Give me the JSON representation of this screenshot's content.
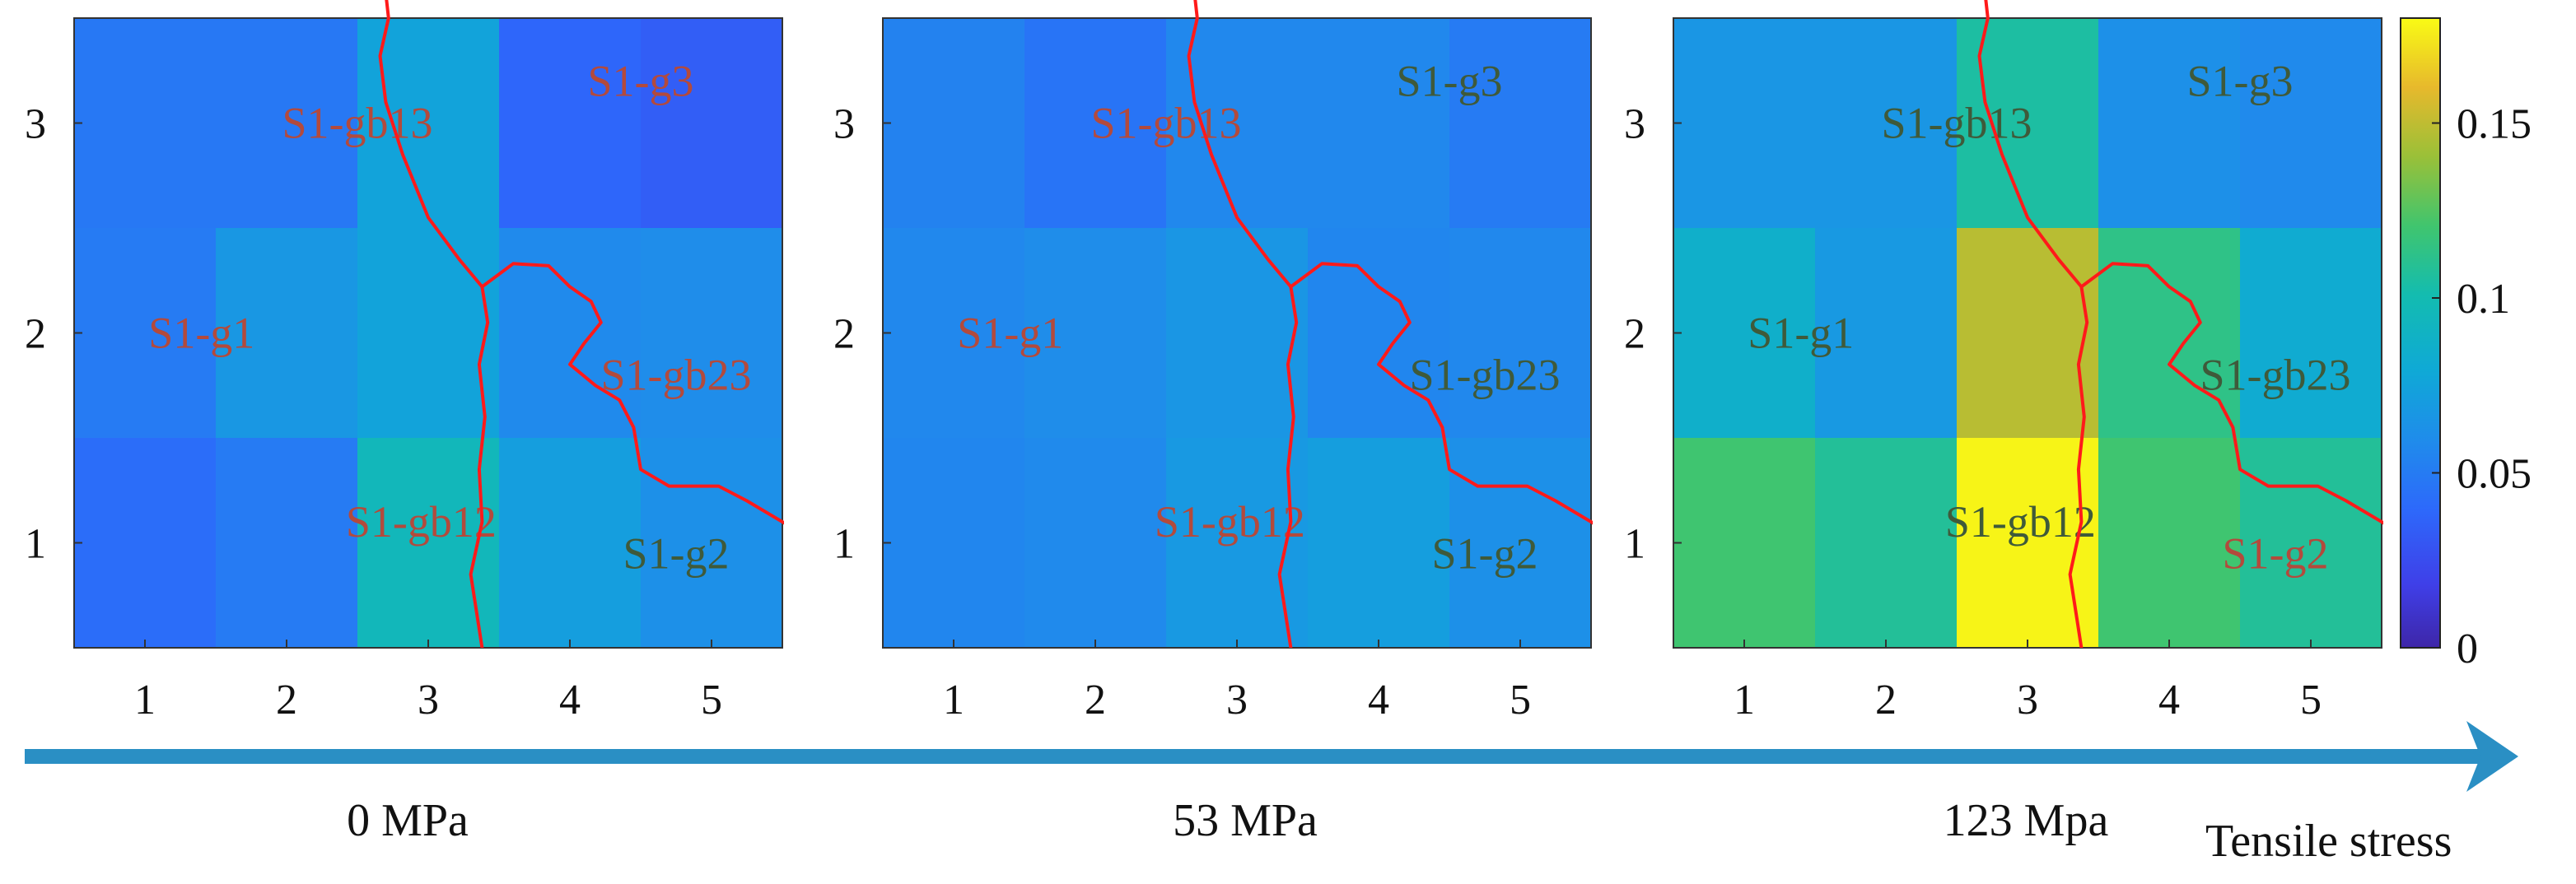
{
  "figure": {
    "stage_labels": [
      "0 MPa",
      "53 MPa",
      "123 Mpa"
    ],
    "arrow_label": "Tensile stress"
  },
  "colorbar": {
    "ticks": [
      0,
      0.05,
      0.1,
      0.15
    ],
    "tick_labels": [
      "0",
      "0.05",
      "0.1",
      "0.15"
    ],
    "range": [
      0,
      0.18
    ],
    "colormap": "parula"
  },
  "colors": {
    "region_label": "#b34a3c",
    "region_label_alt": "#3f5a3a",
    "boundary": "#ff1a1a",
    "arrow": "#2a8fc4"
  },
  "chart_data": [
    {
      "type": "heatmap",
      "title": "0 MPa",
      "x_ticks": [
        1,
        2,
        3,
        4,
        5
      ],
      "y_ticks": [
        1,
        2,
        3
      ],
      "xlim": [
        0.5,
        5.5
      ],
      "ylim": [
        0.5,
        3.5
      ],
      "grid": false,
      "rows": [
        {
          "y": 3,
          "values": [
            0.048,
            0.048,
            0.075,
            0.038,
            0.034
          ]
        },
        {
          "y": 2,
          "values": [
            0.05,
            0.067,
            0.075,
            0.058,
            0.06
          ]
        },
        {
          "y": 1,
          "values": [
            0.042,
            0.05,
            0.095,
            0.072,
            0.062
          ]
        }
      ],
      "labels": [
        {
          "text": "S1-gb13",
          "x": 2.5,
          "y": 3,
          "color": "region_label"
        },
        {
          "text": "S1-g3",
          "x": 4.5,
          "y": 3.2,
          "color": "region_label"
        },
        {
          "text": "S1-g1",
          "x": 1.4,
          "y": 2,
          "color": "region_label"
        },
        {
          "text": "S1-gb23",
          "x": 4.75,
          "y": 1.8,
          "color": "region_label"
        },
        {
          "text": "S1-gb12",
          "x": 2.95,
          "y": 1.1,
          "color": "region_label"
        },
        {
          "text": "S1-g2",
          "x": 4.75,
          "y": 0.95,
          "color": "region_label_alt"
        }
      ]
    },
    {
      "type": "heatmap",
      "title": "53 MPa",
      "x_ticks": [
        1,
        2,
        3,
        4,
        5
      ],
      "y_ticks": [
        1,
        2,
        3
      ],
      "xlim": [
        0.5,
        5.5
      ],
      "ylim": [
        0.5,
        3.5
      ],
      "grid": false,
      "rows": [
        {
          "y": 3,
          "values": [
            0.054,
            0.046,
            0.057,
            0.057,
            0.05
          ]
        },
        {
          "y": 2,
          "values": [
            0.057,
            0.06,
            0.066,
            0.056,
            0.057
          ]
        },
        {
          "y": 1,
          "values": [
            0.056,
            0.058,
            0.068,
            0.072,
            0.062
          ]
        }
      ],
      "labels": [
        {
          "text": "S1-gb13",
          "x": 2.5,
          "y": 3,
          "color": "region_label"
        },
        {
          "text": "S1-g3",
          "x": 4.5,
          "y": 3.2,
          "color": "region_label_alt"
        },
        {
          "text": "S1-g1",
          "x": 1.4,
          "y": 2,
          "color": "region_label"
        },
        {
          "text": "S1-gb23",
          "x": 4.75,
          "y": 1.8,
          "color": "region_label_alt"
        },
        {
          "text": "S1-gb12",
          "x": 2.95,
          "y": 1.1,
          "color": "region_label"
        },
        {
          "text": "S1-g2",
          "x": 4.75,
          "y": 0.95,
          "color": "region_label_alt"
        }
      ]
    },
    {
      "type": "heatmap",
      "title": "123 Mpa",
      "x_ticks": [
        1,
        2,
        3,
        4,
        5
      ],
      "y_ticks": [
        1,
        2,
        3
      ],
      "xlim": [
        0.5,
        5.5
      ],
      "ylim": [
        0.5,
        3.5
      ],
      "grid": false,
      "rows": [
        {
          "y": 3,
          "values": [
            0.066,
            0.066,
            0.105,
            0.062,
            0.058
          ]
        },
        {
          "y": 2,
          "values": [
            0.086,
            0.068,
            0.148,
            0.113,
            0.082
          ]
        },
        {
          "y": 1,
          "values": [
            0.12,
            0.108,
            0.178,
            0.12,
            0.108
          ]
        }
      ],
      "labels": [
        {
          "text": "S1-gb13",
          "x": 2.5,
          "y": 3,
          "color": "region_label_alt"
        },
        {
          "text": "S1-g3",
          "x": 4.5,
          "y": 3.2,
          "color": "region_label_alt"
        },
        {
          "text": "S1-g1",
          "x": 1.4,
          "y": 2,
          "color": "region_label_alt"
        },
        {
          "text": "S1-gb23",
          "x": 4.75,
          "y": 1.8,
          "color": "region_label_alt"
        },
        {
          "text": "S1-gb12",
          "x": 2.95,
          "y": 1.1,
          "color": "region_label_alt"
        },
        {
          "text": "S1-g2",
          "x": 4.75,
          "y": 0.95,
          "color": "region_label"
        }
      ]
    }
  ]
}
